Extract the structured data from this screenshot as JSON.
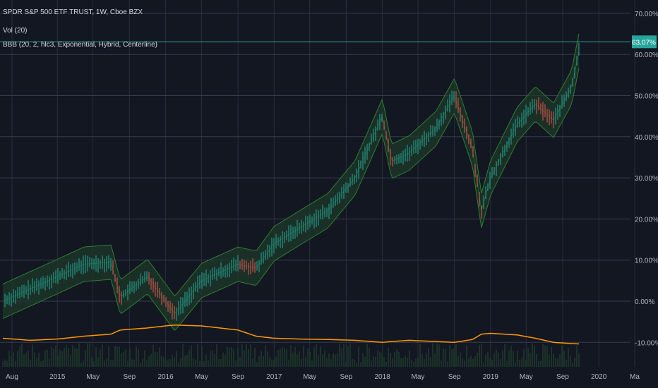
{
  "legend": {
    "title": "SPDR S&P 500 ETF TRUST, 1W, Cboe BZX",
    "vol": "Vol (20)",
    "bbb": "BBB (20, 2, hlc3, Exponential, Hybrid, Centerline)"
  },
  "last_price_label": "63.07%",
  "colors": {
    "background": "#131722",
    "grid": "#363c4e",
    "axis_text": "#b2b5be",
    "up": "#26a69a",
    "down": "#ef5350",
    "band_up_fill": "#1e3a2a",
    "band_down_fill": "#4a1f25",
    "band_line": "#2e7d32",
    "volume_line": "#ff9800",
    "volume_fill": "#1f3a2c",
    "last_price_bg": "#26a69a"
  },
  "chart_data": {
    "type": "line",
    "title": "SPDR S&P 500 ETF TRUST",
    "y_unit": "%",
    "ylim": [
      -12,
      72
    ],
    "y_ticks": [
      "70.00%",
      "60.00%",
      "50.00%",
      "40.00%",
      "30.00%",
      "20.00%",
      "10.00%",
      "0.00%",
      "-10.00%"
    ],
    "x_ticks": [
      "Aug",
      "2015",
      "May",
      "Sep",
      "2016",
      "May",
      "Sep",
      "2017",
      "May",
      "Sep",
      "2018",
      "May",
      "Sep",
      "2019",
      "May",
      "Sep",
      "2020",
      "Ma"
    ],
    "last_value": 63.07,
    "price_series": {
      "name": "SPDR S&P 500 ETF TRUST",
      "x": [
        "2014-07",
        "2014-10",
        "2015-01",
        "2015-04",
        "2015-07",
        "2015-08",
        "2015-11",
        "2016-01",
        "2016-02",
        "2016-05",
        "2016-09",
        "2016-11",
        "2017-01",
        "2017-04",
        "2017-07",
        "2017-10",
        "2018-01",
        "2018-02",
        "2018-04",
        "2018-07",
        "2018-09",
        "2018-11",
        "2018-12",
        "2019-01",
        "2019-04",
        "2019-06",
        "2019-08",
        "2019-10",
        "2019-11"
      ],
      "values": [
        0,
        3,
        6,
        9,
        9.5,
        1,
        6,
        0,
        -3,
        5,
        9,
        8,
        14,
        18,
        22,
        30,
        45,
        34,
        36,
        42,
        50,
        37,
        22,
        30,
        43,
        48,
        44,
        52,
        63
      ]
    },
    "volume_series": {
      "name": "Vol (20)",
      "values": [
        -9,
        -9.5,
        -9.2,
        -8.5,
        -8,
        -7,
        -6.5,
        -6,
        -5.8,
        -6,
        -7,
        -8.5,
        -9,
        -9.2,
        -9.3,
        -9.5,
        -10,
        -9.8,
        -9.5,
        -9.8,
        -10,
        -9.3,
        -8,
        -7.8,
        -8.2,
        -9,
        -10,
        -10.3,
        -10.4
      ]
    }
  }
}
